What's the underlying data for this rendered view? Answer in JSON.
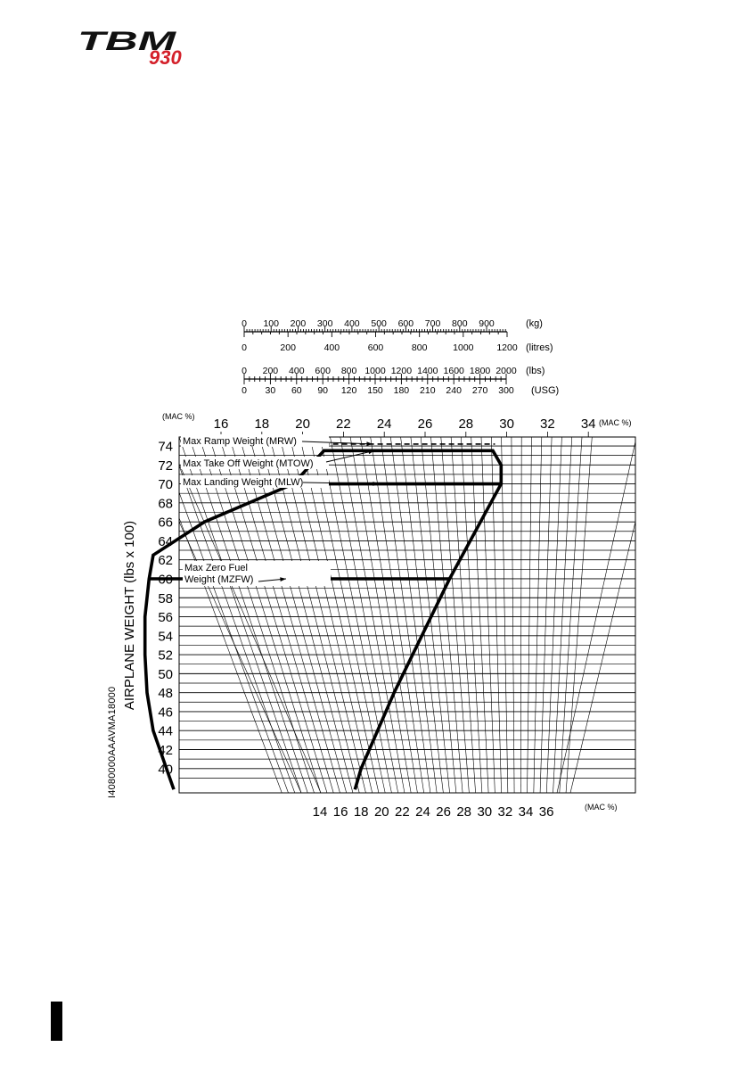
{
  "brand": {
    "name": "TBM",
    "model": "930",
    "accent_color": "#d4202a"
  },
  "document_id": "I4080000AAAVMA18000",
  "chart_data": {
    "type": "line",
    "title": "",
    "ylabel": "AIRPLANE WEIGHT (lbs x 100)",
    "ylim": [
      38,
      76
    ],
    "y_ticks": [
      74,
      72,
      70,
      68,
      66,
      64,
      62,
      60,
      58,
      56,
      54,
      52,
      50,
      48,
      46,
      44,
      42,
      40
    ],
    "mac_unit_label": "(MAC %)",
    "top_mac_ticks": [
      16,
      18,
      20,
      22,
      24,
      26,
      28,
      30,
      32,
      34
    ],
    "bottom_mac_ticks": [
      14,
      16,
      18,
      20,
      22,
      24,
      26,
      28,
      30,
      32,
      34,
      36
    ],
    "scales": [
      {
        "unit": "(kg)",
        "ticks": [
          0,
          100,
          200,
          300,
          400,
          500,
          600,
          700,
          800,
          900
        ]
      },
      {
        "unit": "(litres)",
        "ticks": [
          0,
          200,
          400,
          600,
          800,
          1000,
          1200
        ]
      },
      {
        "unit": "(lbs)",
        "ticks": [
          0,
          200,
          400,
          600,
          800,
          1000,
          1200,
          1400,
          1600,
          1800,
          2000
        ]
      },
      {
        "unit": "(USG)",
        "ticks": [
          0,
          30,
          60,
          90,
          120,
          150,
          180,
          210,
          240,
          270,
          300
        ]
      }
    ],
    "annotations": [
      {
        "text": "Max Ramp Weight (MRW)",
        "weight": 74.2
      },
      {
        "text": "Max Take Off Weight (MTOW)",
        "weight": 73.5
      },
      {
        "text": "Max Landing Weight (MLW)",
        "weight": 70.0
      },
      {
        "text": "Max Zero Fuel",
        "text2": "Weight (MZFW)",
        "weight": 60.0
      }
    ],
    "series": [
      {
        "style": "solid",
        "points": [
          [
            14.0,
            37.8
          ],
          [
            13.0,
            44.0
          ],
          [
            12.7,
            48.0
          ],
          [
            12.6,
            52.0
          ],
          [
            12.6,
            56.0
          ],
          [
            12.8,
            60.0
          ],
          [
            13.0,
            62.5
          ],
          [
            15.5,
            66.0
          ],
          [
            19.8,
            70.0
          ],
          [
            21.3,
            73.5
          ],
          [
            29.5,
            73.5
          ],
          [
            29.9,
            72.0
          ],
          [
            29.9,
            70.0
          ],
          [
            27.4,
            60.0
          ],
          [
            24.7,
            48.0
          ],
          [
            23.1,
            40.0
          ],
          [
            22.8,
            37.8
          ]
        ]
      },
      {
        "style": "solid",
        "points": [
          [
            12.8,
            60.0
          ],
          [
            27.4,
            60.0
          ]
        ]
      },
      {
        "style": "solid",
        "points": [
          [
            19.8,
            70.0
          ],
          [
            29.9,
            70.0
          ]
        ]
      },
      {
        "style": "dashed",
        "points": [
          [
            21.3,
            74.2
          ],
          [
            29.6,
            74.2
          ]
        ]
      }
    ]
  }
}
